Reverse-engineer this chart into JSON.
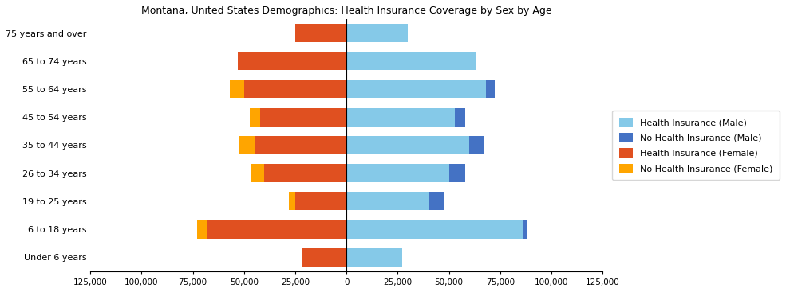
{
  "title": "Montana, United States Demographics: Health Insurance Coverage by Sex by Age",
  "age_groups": [
    "Under 6 years",
    "6 to 18 years",
    "19 to 25 years",
    "26 to 34 years",
    "35 to 44 years",
    "45 to 54 years",
    "55 to 64 years",
    "65 to 74 years",
    "75 years and over"
  ],
  "health_ins_male": [
    27000,
    86000,
    40000,
    50000,
    60000,
    53000,
    68000,
    63000,
    30000
  ],
  "no_health_ins_male": [
    0,
    2500,
    8000,
    8000,
    7000,
    5000,
    4500,
    0,
    0
  ],
  "health_ins_female": [
    22000,
    68000,
    25000,
    40000,
    45000,
    42000,
    50000,
    53000,
    25000
  ],
  "no_health_ins_female": [
    0,
    5000,
    3000,
    6500,
    7500,
    5000,
    7000,
    0,
    0
  ],
  "color_health_male": "#85C9E8",
  "color_no_health_male": "#4472C4",
  "color_health_female": "#E05020",
  "color_no_health_female": "#FFA500",
  "xlim": 125000,
  "xtick_step": 25000,
  "legend_labels": [
    "Health Insurance (Male)",
    "No Health Insurance (Male)",
    "Health Insurance (Female)",
    "No Health Insurance (Female)"
  ],
  "bar_height": 0.65
}
